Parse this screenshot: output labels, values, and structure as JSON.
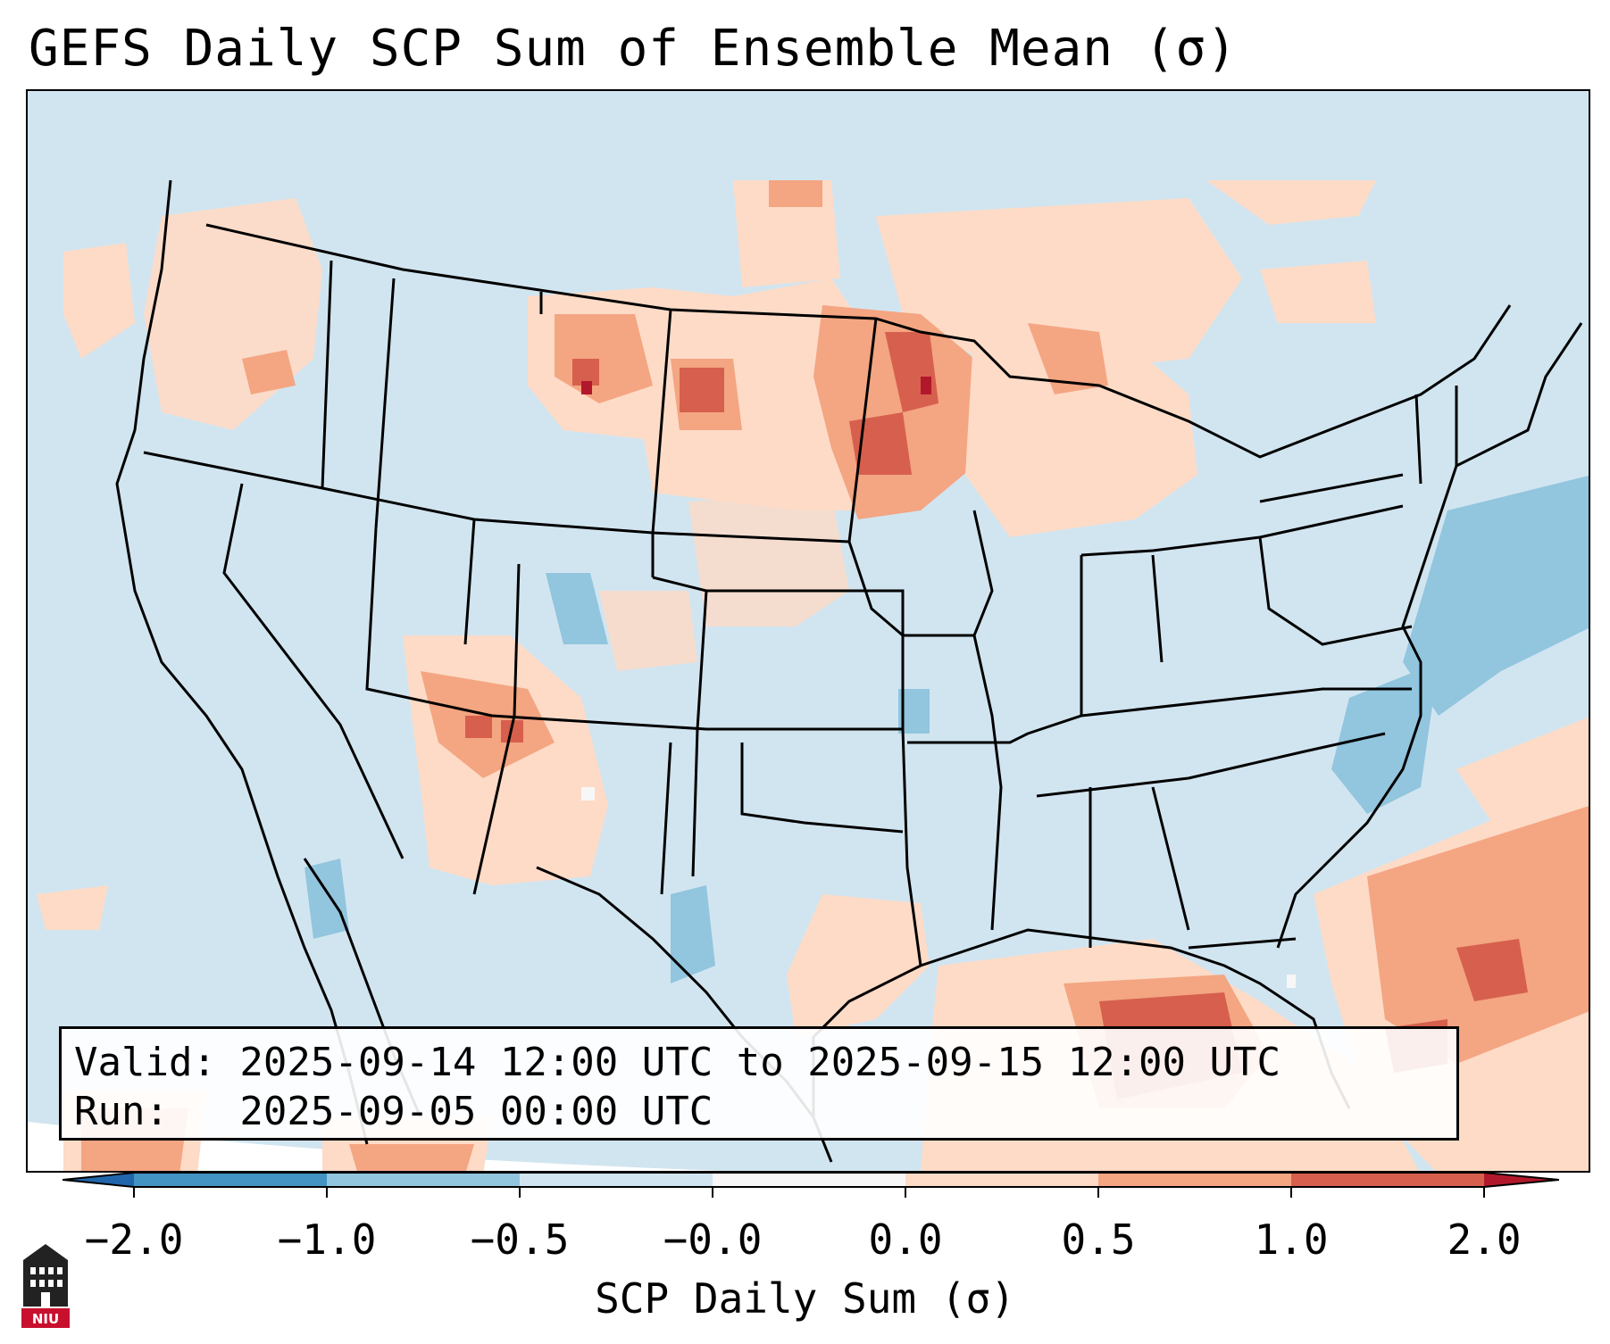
{
  "title": "GEFS Daily SCP Sum of Ensemble Mean (σ)",
  "valid_line": "Valid: 2025-09-14 12:00 UTC to 2025-09-15 12:00 UTC",
  "run_line": "Run:   2025-09-05 00:00 UTC",
  "colorbar": {
    "label": "SCP Daily Sum (σ)",
    "ticks": [
      "−2.0",
      "−1.0",
      "−0.5",
      "−0.0",
      "0.0",
      "0.5",
      "1.0",
      "2.0"
    ],
    "colors": [
      "#4393c3",
      "#92c5de",
      "#d1e5f0",
      "#f7f7f7",
      "#fddbc7",
      "#f4a582",
      "#d6604d"
    ],
    "under_color": "#2166ac",
    "over_color": "#b2182b"
  },
  "logo_text": "NIU",
  "colors": {
    "background_field": "#d1e5f0",
    "light_positive": "#fddbc7",
    "moderate_positive": "#f4a582",
    "strong_positive": "#d6604d",
    "very_strong_positive": "#b2182b",
    "light_negative": "#92c5de"
  }
}
